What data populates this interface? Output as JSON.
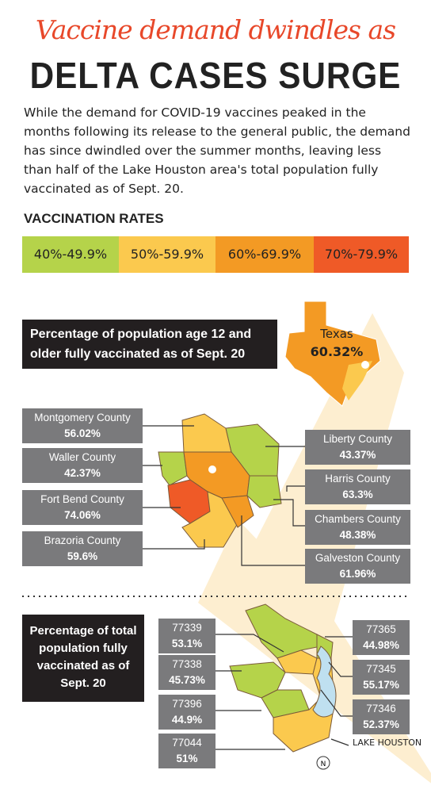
{
  "title": {
    "line1": "Vaccine demand dwindles as",
    "line2": "DELTA CASES SURGE"
  },
  "intro": "While the demand for COVID-19 vaccines peaked in the months following its release to the general public, the demand has since dwindled over the summer months, leaving less than half of the Lake Houston area's total population fully vaccinated as of Sept. 20.",
  "legend": {
    "title": "VACCINATION RATES",
    "items": [
      {
        "label": "40%-49.9%",
        "color": "#b5d34a"
      },
      {
        "label": "50%-59.9%",
        "color": "#fbc94e"
      },
      {
        "label": "60%-69.9%",
        "color": "#f39a24"
      },
      {
        "label": "70%-79.9%",
        "color": "#ef5a27"
      }
    ]
  },
  "state": {
    "heading": "Percentage of population age 12 and older fully vaccinated as of Sept. 20",
    "name": "Texas",
    "value": "60.32%"
  },
  "counties": [
    {
      "name": "Montgomery County",
      "value": "56.02%"
    },
    {
      "name": "Waller County",
      "value": "42.37%"
    },
    {
      "name": "Fort Bend County",
      "value": "74.06%"
    },
    {
      "name": "Brazoria County",
      "value": "59.6%"
    },
    {
      "name": "Liberty County",
      "value": "43.37%"
    },
    {
      "name": "Harris County",
      "value": "63.3%"
    },
    {
      "name": "Chambers County",
      "value": "48.38%"
    },
    {
      "name": "Galveston County",
      "value": "61.96%"
    }
  ],
  "zip_heading": "Percentage of total population fully vaccinated as of Sept. 20",
  "zips": [
    {
      "code": "77339",
      "value": "53.1%"
    },
    {
      "code": "77338",
      "value": "45.73%"
    },
    {
      "code": "77396",
      "value": "44.9%"
    },
    {
      "code": "77044",
      "value": "51%"
    },
    {
      "code": "77365",
      "value": "44.98%"
    },
    {
      "code": "77345",
      "value": "55.17%"
    },
    {
      "code": "77346",
      "value": "52.37%"
    }
  ],
  "lake_label": "LAKE HOUSTON",
  "north": "N"
}
